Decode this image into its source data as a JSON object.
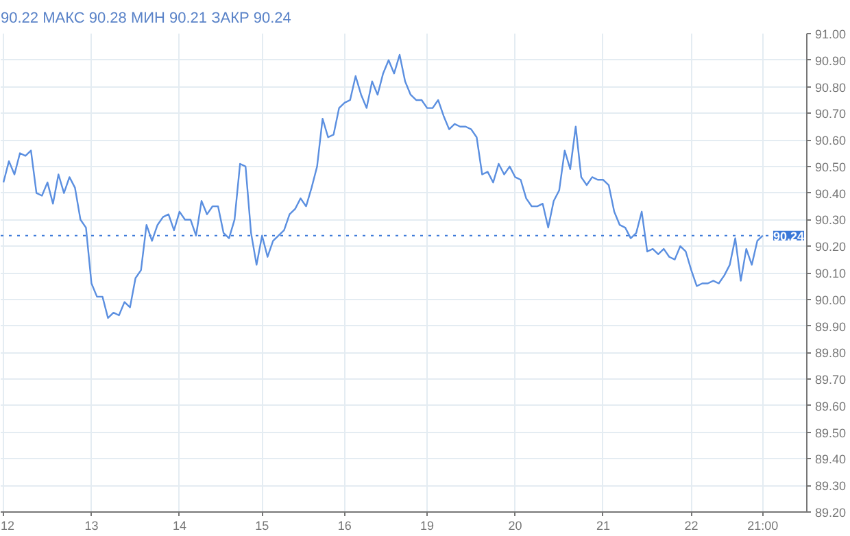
{
  "chart_data": {
    "type": "line",
    "title": "90.22 МАКС 90.28 МИН 90.21 ЗАКР 90.24",
    "categories": [
      "12",
      null,
      null,
      null,
      null,
      null,
      null,
      null,
      null,
      null,
      null,
      null,
      null,
      null,
      null,
      null,
      "13",
      null,
      null,
      null,
      null,
      null,
      null,
      null,
      null,
      null,
      null,
      null,
      null,
      null,
      null,
      null,
      "14",
      null,
      null,
      null,
      null,
      null,
      null,
      null,
      null,
      null,
      null,
      null,
      null,
      null,
      null,
      "15",
      null,
      null,
      null,
      null,
      null,
      null,
      null,
      null,
      null,
      null,
      null,
      null,
      null,
      null,
      "16",
      null,
      null,
      null,
      null,
      null,
      null,
      null,
      null,
      null,
      null,
      null,
      null,
      null,
      null,
      "19",
      null,
      null,
      null,
      null,
      null,
      null,
      null,
      null,
      null,
      null,
      null,
      null,
      null,
      null,
      null,
      "20",
      null,
      null,
      null,
      null,
      null,
      null,
      null,
      null,
      null,
      null,
      null,
      null,
      null,
      null,
      null,
      "21",
      null,
      null,
      null,
      null,
      null,
      null,
      null,
      null,
      null,
      null,
      null,
      null,
      null,
      null,
      null,
      "22",
      null,
      null,
      null,
      null,
      null,
      null,
      null,
      null,
      null,
      null,
      null,
      null,
      "21:00"
    ],
    "series": [
      {
        "color": "#5b8fe0",
        "values": [
          90.44,
          90.52,
          90.47,
          90.55,
          90.54,
          90.56,
          90.4,
          90.39,
          90.44,
          90.36,
          90.47,
          90.4,
          90.46,
          90.42,
          90.3,
          90.27,
          90.06,
          90.01,
          90.01,
          89.93,
          89.95,
          89.94,
          89.99,
          89.97,
          90.08,
          90.11,
          90.28,
          90.22,
          90.28,
          90.31,
          90.32,
          90.26,
          90.33,
          90.3,
          90.3,
          90.24,
          90.37,
          90.32,
          90.35,
          90.35,
          90.25,
          90.23,
          90.3,
          90.51,
          90.5,
          90.25,
          90.13,
          90.24,
          90.16,
          90.22,
          90.24,
          90.26,
          90.32,
          90.34,
          90.38,
          90.35,
          90.42,
          90.5,
          90.68,
          90.61,
          90.62,
          90.72,
          90.74,
          90.75,
          90.84,
          90.77,
          90.72,
          90.82,
          90.77,
          90.85,
          90.9,
          90.85,
          90.92,
          90.82,
          90.77,
          90.75,
          90.75,
          90.72,
          90.72,
          90.75,
          90.69,
          90.64,
          90.66,
          90.65,
          90.65,
          90.64,
          90.61,
          90.47,
          90.48,
          90.44,
          90.51,
          90.47,
          90.5,
          90.46,
          90.45,
          90.38,
          90.35,
          90.35,
          90.36,
          90.27,
          90.37,
          90.41,
          90.56,
          90.49,
          90.65,
          90.46,
          90.43,
          90.46,
          90.45,
          90.45,
          90.43,
          90.33,
          90.28,
          90.27,
          90.23,
          90.25,
          90.33,
          90.18,
          90.19,
          90.17,
          90.19,
          90.16,
          90.15,
          90.2,
          90.18,
          90.11,
          90.05,
          90.06,
          90.06,
          90.07,
          90.06,
          90.09,
          90.13,
          90.23,
          90.07,
          90.19,
          90.13,
          90.22,
          90.24
        ]
      }
    ],
    "ylim": [
      89.2,
      91.0
    ],
    "yticks": [
      {
        "value": 89.2,
        "label": "89.20"
      },
      {
        "value": 89.3,
        "label": "89.30"
      },
      {
        "value": 89.4,
        "label": "89.40"
      },
      {
        "value": 89.5,
        "label": "89.50"
      },
      {
        "value": 89.6,
        "label": "89.60"
      },
      {
        "value": 89.7,
        "label": "89.70"
      },
      {
        "value": 89.8,
        "label": "89.80"
      },
      {
        "value": 89.9,
        "label": "89.90"
      },
      {
        "value": 90.0,
        "label": "90.00"
      },
      {
        "value": 90.1,
        "label": "90.10"
      },
      {
        "value": 90.2,
        "label": "90.20"
      },
      {
        "value": 90.3,
        "label": "90.30"
      },
      {
        "value": 90.4,
        "label": "90.40"
      },
      {
        "value": 90.5,
        "label": "90.50"
      },
      {
        "value": 90.6,
        "label": "90.60"
      },
      {
        "value": 90.7,
        "label": "90.70"
      },
      {
        "value": 90.8,
        "label": "90.80"
      },
      {
        "value": 90.9,
        "label": "90.90"
      },
      {
        "value": 91.0,
        "label": "91.00"
      }
    ],
    "ref_lines": [
      {
        "axis": "y",
        "value": 90.24,
        "label": "90.24",
        "color": "#3b78d8",
        "line_style": "dotted"
      }
    ],
    "grid": true
  }
}
